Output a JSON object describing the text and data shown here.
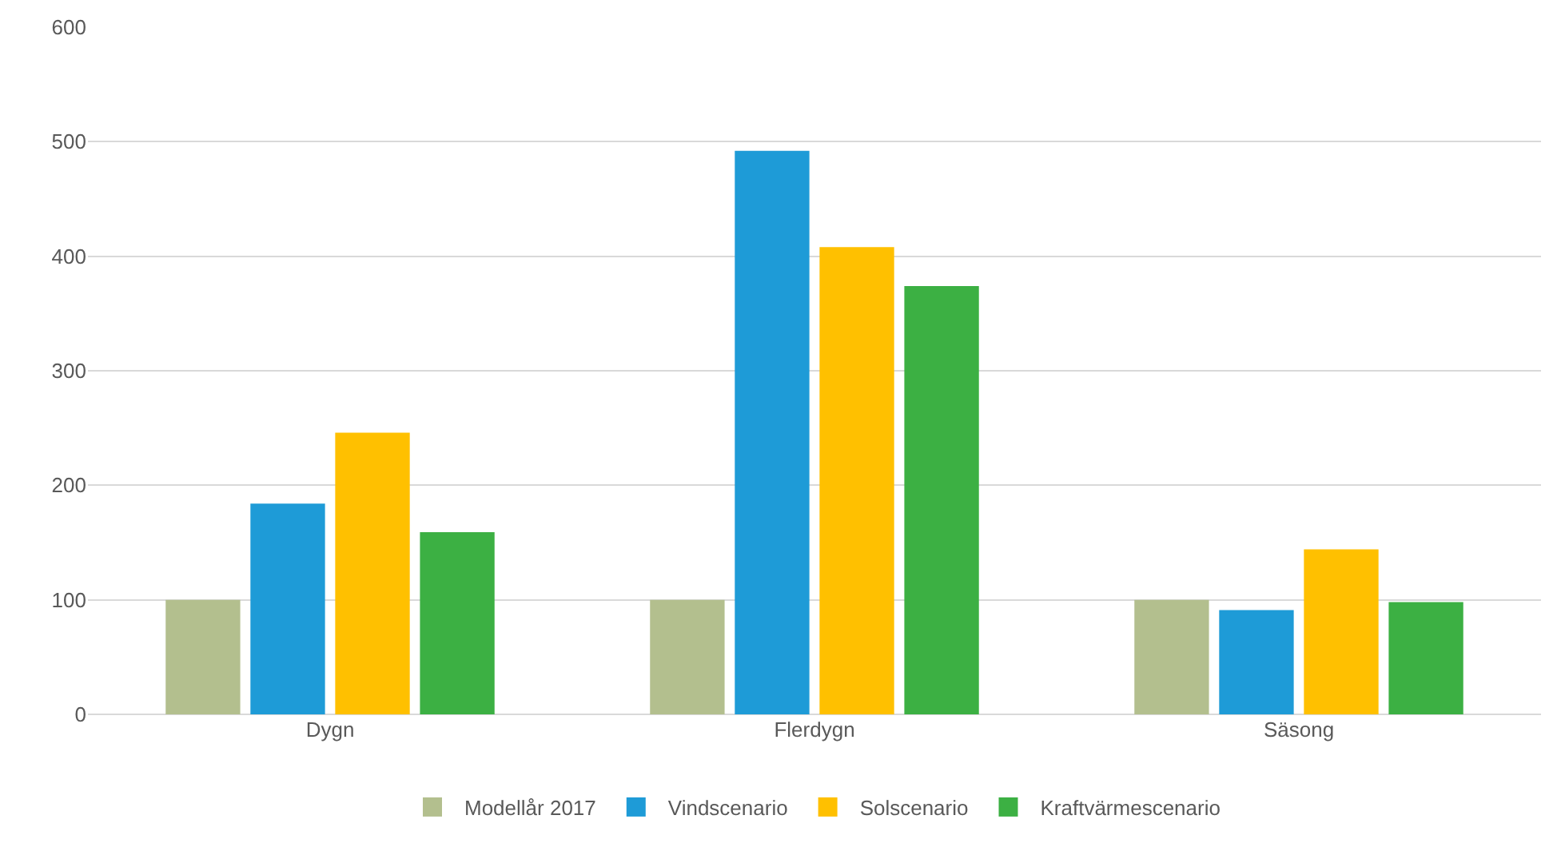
{
  "chart_data": {
    "type": "bar",
    "categories": [
      "Dygn",
      "Flerdygn",
      "Säsong"
    ],
    "series": [
      {
        "name": "Modellår 2017",
        "color": "#b3bf8e",
        "values": [
          100,
          100,
          100
        ]
      },
      {
        "name": "Vindscenario",
        "color": "#1e9bd7",
        "values": [
          184,
          492,
          91
        ]
      },
      {
        "name": "Solscenario",
        "color": "#ffc000",
        "values": [
          246,
          408,
          144
        ]
      },
      {
        "name": "Kraftvärmescenario",
        "color": "#3cb043",
        "values": [
          159,
          374,
          98
        ]
      }
    ],
    "ylim": [
      0,
      600
    ],
    "yticks": [
      0,
      100,
      200,
      300,
      400,
      500,
      600
    ],
    "grid": "y",
    "legend": "bottom"
  }
}
